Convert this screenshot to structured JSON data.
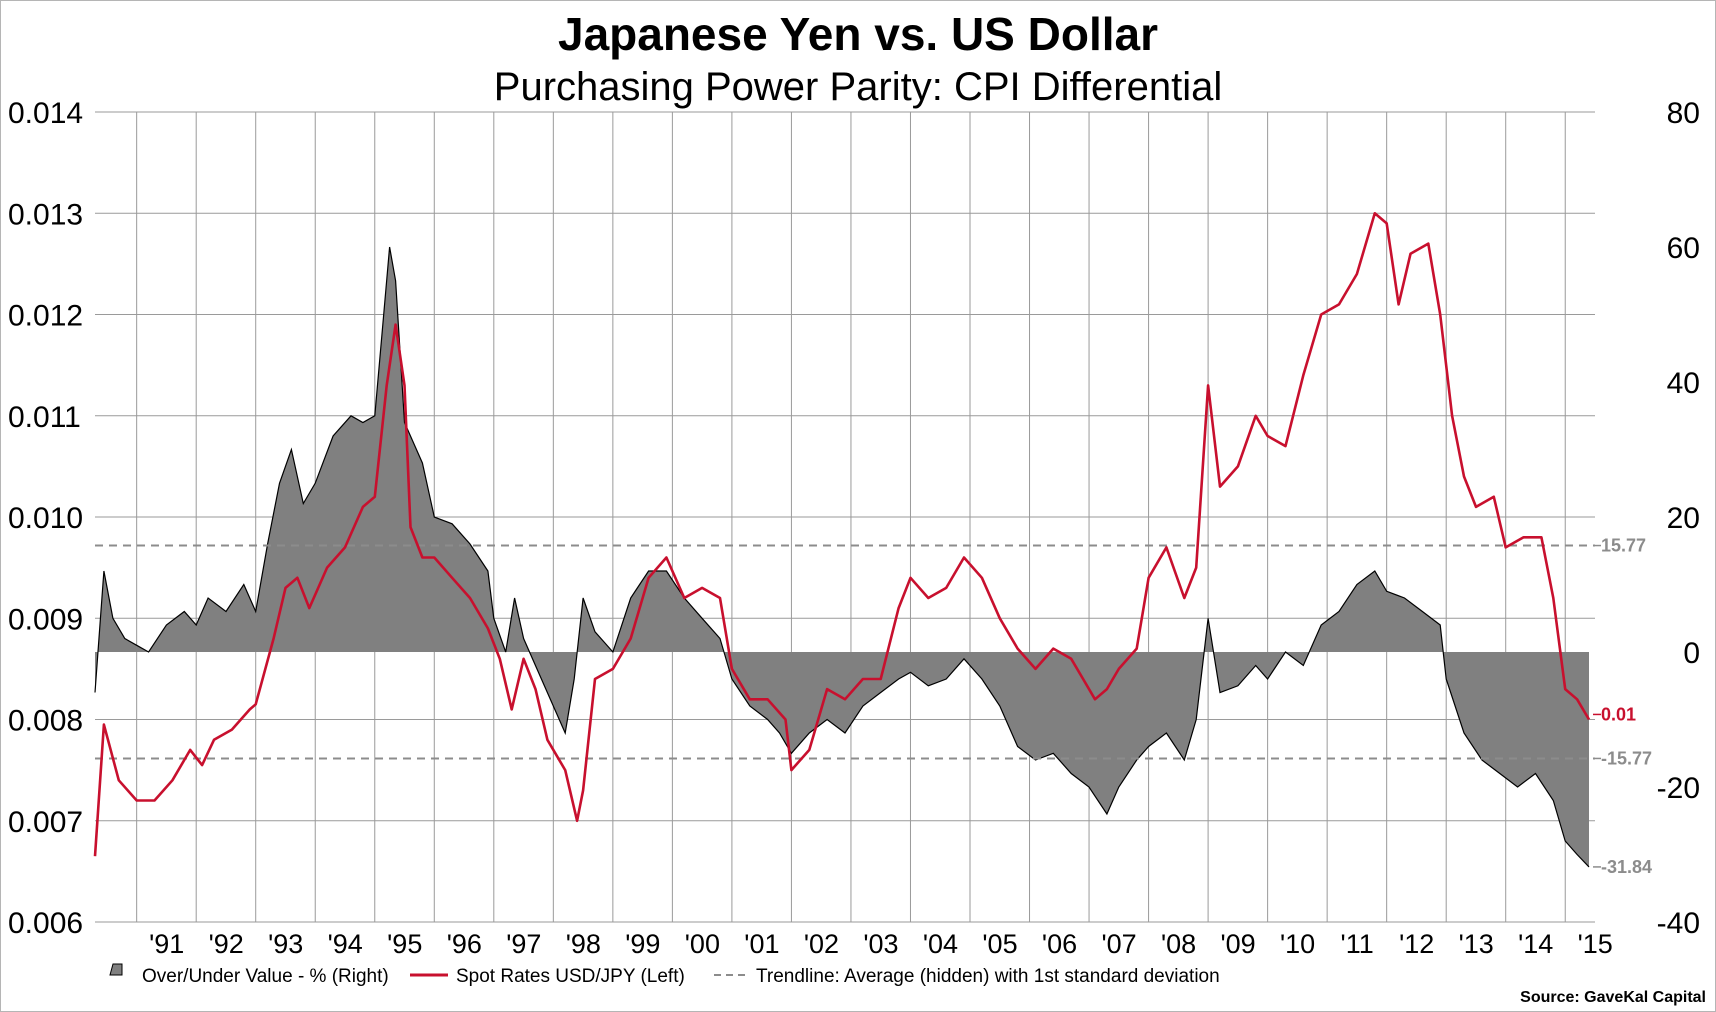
{
  "chart_data": {
    "type": "line",
    "title": "Japanese Yen vs. US Dollar",
    "subtitle": "Purchasing Power Parity: CPI Differential",
    "left_axis": {
      "ylim": [
        0.006,
        0.014
      ],
      "ticks": [
        "0.006",
        "0.007",
        "0.008",
        "0.009",
        "0.010",
        "0.011",
        "0.012",
        "0.013",
        "0.014"
      ]
    },
    "right_axis": {
      "ylim": [
        -40,
        80
      ],
      "ticks": [
        "-40",
        "-20",
        "0",
        "20",
        "40",
        "60",
        "80"
      ]
    },
    "x_range": [
      1990.3,
      2015.5
    ],
    "x_ticks": [
      {
        "label": "'91",
        "x": 1991
      },
      {
        "label": "'92",
        "x": 1992
      },
      {
        "label": "'93",
        "x": 1993
      },
      {
        "label": "'94",
        "x": 1994
      },
      {
        "label": "'95",
        "x": 1995
      },
      {
        "label": "'96",
        "x": 1996
      },
      {
        "label": "'97",
        "x": 1997
      },
      {
        "label": "'98",
        "x": 1998
      },
      {
        "label": "'99",
        "x": 1999
      },
      {
        "label": "'00",
        "x": 2000
      },
      {
        "label": "'01",
        "x": 2001
      },
      {
        "label": "'02",
        "x": 2002
      },
      {
        "label": "'03",
        "x": 2003
      },
      {
        "label": "'04",
        "x": 2004
      },
      {
        "label": "'05",
        "x": 2005
      },
      {
        "label": "'06",
        "x": 2006
      },
      {
        "label": "'07",
        "x": 2007
      },
      {
        "label": "'08",
        "x": 2008
      },
      {
        "label": "'09",
        "x": 2009
      },
      {
        "label": "'10",
        "x": 2010
      },
      {
        "label": "'11",
        "x": 2011
      },
      {
        "label": "'12",
        "x": 2012
      },
      {
        "label": "'13",
        "x": 2013
      },
      {
        "label": "'14",
        "x": 2014
      },
      {
        "label": "'15",
        "x": 2015
      }
    ],
    "grid": true,
    "series": [
      {
        "name": "Over/Under Value - %  (Right)",
        "type": "area",
        "axis": "right",
        "color": "#808080",
        "points": [
          [
            1990.3,
            -6
          ],
          [
            1990.45,
            12
          ],
          [
            1990.6,
            5
          ],
          [
            1990.8,
            2
          ],
          [
            1991.0,
            1
          ],
          [
            1991.2,
            0
          ],
          [
            1991.5,
            4
          ],
          [
            1991.8,
            6
          ],
          [
            1992.0,
            4
          ],
          [
            1992.2,
            8
          ],
          [
            1992.5,
            6
          ],
          [
            1992.8,
            10
          ],
          [
            1993.0,
            6
          ],
          [
            1993.2,
            16
          ],
          [
            1993.4,
            25
          ],
          [
            1993.6,
            30
          ],
          [
            1993.8,
            22
          ],
          [
            1994.0,
            25
          ],
          [
            1994.3,
            32
          ],
          [
            1994.6,
            35
          ],
          [
            1994.8,
            34
          ],
          [
            1995.0,
            35
          ],
          [
            1995.15,
            50
          ],
          [
            1995.25,
            60
          ],
          [
            1995.35,
            55
          ],
          [
            1995.5,
            34
          ],
          [
            1995.8,
            28
          ],
          [
            1996.0,
            20
          ],
          [
            1996.3,
            19
          ],
          [
            1996.6,
            16
          ],
          [
            1996.9,
            12
          ],
          [
            1997.0,
            5
          ],
          [
            1997.2,
            0
          ],
          [
            1997.35,
            8
          ],
          [
            1997.5,
            2
          ],
          [
            1997.8,
            -4
          ],
          [
            1998.0,
            -8
          ],
          [
            1998.2,
            -12
          ],
          [
            1998.35,
            -4
          ],
          [
            1998.5,
            8
          ],
          [
            1998.7,
            3
          ],
          [
            1999.0,
            0
          ],
          [
            1999.3,
            8
          ],
          [
            1999.6,
            12
          ],
          [
            1999.9,
            12
          ],
          [
            2000.2,
            8
          ],
          [
            2000.5,
            5
          ],
          [
            2000.8,
            2
          ],
          [
            2001.0,
            -4
          ],
          [
            2001.3,
            -8
          ],
          [
            2001.6,
            -10
          ],
          [
            2001.8,
            -12
          ],
          [
            2002.0,
            -15
          ],
          [
            2002.3,
            -12
          ],
          [
            2002.6,
            -10
          ],
          [
            2002.9,
            -12
          ],
          [
            2003.2,
            -8
          ],
          [
            2003.5,
            -6
          ],
          [
            2003.8,
            -4
          ],
          [
            2004.0,
            -3
          ],
          [
            2004.3,
            -5
          ],
          [
            2004.6,
            -4
          ],
          [
            2004.9,
            -1
          ],
          [
            2005.2,
            -4
          ],
          [
            2005.5,
            -8
          ],
          [
            2005.8,
            -14
          ],
          [
            2006.1,
            -16
          ],
          [
            2006.4,
            -15
          ],
          [
            2006.7,
            -18
          ],
          [
            2007.0,
            -20
          ],
          [
            2007.3,
            -24
          ],
          [
            2007.5,
            -20
          ],
          [
            2007.8,
            -16
          ],
          [
            2008.0,
            -14
          ],
          [
            2008.3,
            -12
          ],
          [
            2008.6,
            -16
          ],
          [
            2008.8,
            -10
          ],
          [
            2009.0,
            5
          ],
          [
            2009.2,
            -6
          ],
          [
            2009.5,
            -5
          ],
          [
            2009.8,
            -2
          ],
          [
            2010.0,
            -4
          ],
          [
            2010.3,
            0
          ],
          [
            2010.6,
            -2
          ],
          [
            2010.9,
            4
          ],
          [
            2011.2,
            6
          ],
          [
            2011.5,
            10
          ],
          [
            2011.8,
            12
          ],
          [
            2012.0,
            9
          ],
          [
            2012.3,
            8
          ],
          [
            2012.6,
            6
          ],
          [
            2012.9,
            4
          ],
          [
            2013.0,
            -4
          ],
          [
            2013.3,
            -12
          ],
          [
            2013.6,
            -16
          ],
          [
            2013.9,
            -18
          ],
          [
            2014.2,
            -20
          ],
          [
            2014.5,
            -18
          ],
          [
            2014.8,
            -22
          ],
          [
            2015.0,
            -28
          ],
          [
            2015.2,
            -30
          ],
          [
            2015.4,
            -31.84
          ]
        ]
      },
      {
        "name": "Spot Rates USD/JPY   (Left)",
        "type": "line",
        "axis": "left",
        "color": "#c8102e",
        "points": [
          [
            1990.3,
            0.00665
          ],
          [
            1990.45,
            0.00795
          ],
          [
            1990.7,
            0.0074
          ],
          [
            1991.0,
            0.0072
          ],
          [
            1991.3,
            0.0072
          ],
          [
            1991.6,
            0.0074
          ],
          [
            1991.9,
            0.0077
          ],
          [
            1992.1,
            0.00755
          ],
          [
            1992.3,
            0.0078
          ],
          [
            1992.6,
            0.0079
          ],
          [
            1992.9,
            0.0081
          ],
          [
            1993.0,
            0.00815
          ],
          [
            1993.3,
            0.0088
          ],
          [
            1993.5,
            0.0093
          ],
          [
            1993.7,
            0.0094
          ],
          [
            1993.9,
            0.0091
          ],
          [
            1994.2,
            0.0095
          ],
          [
            1994.5,
            0.0097
          ],
          [
            1994.8,
            0.0101
          ],
          [
            1995.0,
            0.0102
          ],
          [
            1995.2,
            0.0113
          ],
          [
            1995.35,
            0.0119
          ],
          [
            1995.5,
            0.0113
          ],
          [
            1995.6,
            0.0099
          ],
          [
            1995.8,
            0.0096
          ],
          [
            1996.0,
            0.0096
          ],
          [
            1996.3,
            0.0094
          ],
          [
            1996.6,
            0.0092
          ],
          [
            1996.9,
            0.0089
          ],
          [
            1997.1,
            0.0086
          ],
          [
            1997.3,
            0.0081
          ],
          [
            1997.5,
            0.0086
          ],
          [
            1997.7,
            0.0083
          ],
          [
            1997.9,
            0.0078
          ],
          [
            1998.2,
            0.0075
          ],
          [
            1998.4,
            0.007
          ],
          [
            1998.5,
            0.0073
          ],
          [
            1998.7,
            0.0084
          ],
          [
            1999.0,
            0.0085
          ],
          [
            1999.3,
            0.0088
          ],
          [
            1999.6,
            0.0094
          ],
          [
            1999.9,
            0.0096
          ],
          [
            2000.2,
            0.0092
          ],
          [
            2000.5,
            0.0093
          ],
          [
            2000.8,
            0.0092
          ],
          [
            2001.0,
            0.0085
          ],
          [
            2001.3,
            0.0082
          ],
          [
            2001.6,
            0.0082
          ],
          [
            2001.9,
            0.008
          ],
          [
            2002.0,
            0.0075
          ],
          [
            2002.3,
            0.0077
          ],
          [
            2002.6,
            0.0083
          ],
          [
            2002.9,
            0.0082
          ],
          [
            2003.2,
            0.0084
          ],
          [
            2003.5,
            0.0084
          ],
          [
            2003.8,
            0.0091
          ],
          [
            2004.0,
            0.0094
          ],
          [
            2004.3,
            0.0092
          ],
          [
            2004.6,
            0.0093
          ],
          [
            2004.9,
            0.0096
          ],
          [
            2005.2,
            0.0094
          ],
          [
            2005.5,
            0.009
          ],
          [
            2005.8,
            0.0087
          ],
          [
            2006.1,
            0.0085
          ],
          [
            2006.4,
            0.0087
          ],
          [
            2006.7,
            0.0086
          ],
          [
            2006.9,
            0.0084
          ],
          [
            2007.1,
            0.0082
          ],
          [
            2007.3,
            0.0083
          ],
          [
            2007.5,
            0.0085
          ],
          [
            2007.8,
            0.0087
          ],
          [
            2008.0,
            0.0094
          ],
          [
            2008.3,
            0.0097
          ],
          [
            2008.6,
            0.0092
          ],
          [
            2008.8,
            0.0095
          ],
          [
            2009.0,
            0.0113
          ],
          [
            2009.2,
            0.0103
          ],
          [
            2009.5,
            0.0105
          ],
          [
            2009.8,
            0.011
          ],
          [
            2010.0,
            0.0108
          ],
          [
            2010.3,
            0.0107
          ],
          [
            2010.6,
            0.0114
          ],
          [
            2010.9,
            0.012
          ],
          [
            2011.2,
            0.0121
          ],
          [
            2011.5,
            0.0124
          ],
          [
            2011.8,
            0.013
          ],
          [
            2012.0,
            0.0129
          ],
          [
            2012.2,
            0.0121
          ],
          [
            2012.4,
            0.0126
          ],
          [
            2012.7,
            0.0127
          ],
          [
            2012.9,
            0.012
          ],
          [
            2013.1,
            0.011
          ],
          [
            2013.3,
            0.0104
          ],
          [
            2013.5,
            0.0101
          ],
          [
            2013.8,
            0.0102
          ],
          [
            2014.0,
            0.0097
          ],
          [
            2014.3,
            0.0098
          ],
          [
            2014.6,
            0.0098
          ],
          [
            2014.8,
            0.0092
          ],
          [
            2015.0,
            0.0083
          ],
          [
            2015.2,
            0.0082
          ],
          [
            2015.4,
            0.008
          ]
        ]
      },
      {
        "name": "Trendline: Average (hidden) with 1st standard deviation",
        "type": "reference-lines",
        "axis": "right",
        "color": "#8c8c8c",
        "values": [
          15.77,
          -15.77
        ]
      }
    ],
    "annotations": [
      {
        "text": "15.77",
        "axis": "right",
        "value": 15.77,
        "color": "#8c8c8c"
      },
      {
        "text": "-15.77",
        "axis": "right",
        "value": -15.77,
        "color": "#8c8c8c"
      },
      {
        "text": "0.01",
        "axis": "left",
        "value": 0.00805,
        "color": "#c8102e"
      },
      {
        "text": "-31.84",
        "axis": "right",
        "value": -31.84,
        "color": "#8c8c8c"
      }
    ],
    "legend": {
      "placement": "bottom",
      "items": [
        {
          "label": "Over/Under Value - %  (Right)",
          "marker": "area"
        },
        {
          "label": "Spot Rates USD/JPY   (Left)",
          "marker": "line"
        },
        {
          "label": "Trendline: Average (hidden) with 1st standard deviation",
          "marker": "dashed"
        }
      ]
    },
    "source": "Source: GaveKal Capital"
  }
}
